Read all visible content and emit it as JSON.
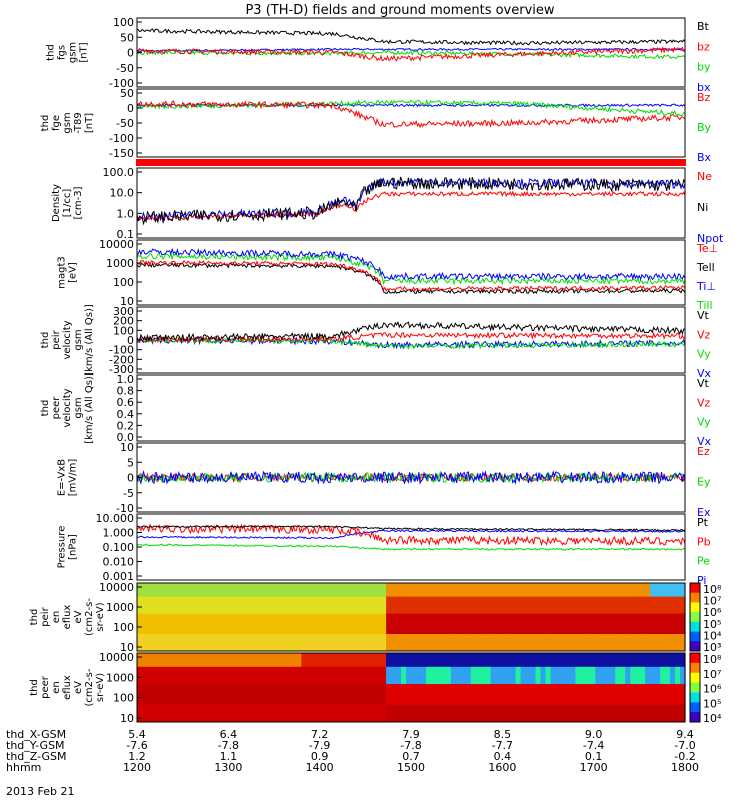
{
  "title": "P3 (TH-D) fields and ground moments overview",
  "date": "2013 Feb 21",
  "colors": {
    "black": "#000000",
    "red": "#ff0000",
    "green": "#00dd00",
    "blue": "#0000ff"
  },
  "chart_data": [
    {
      "type": "line",
      "panel": "fgs",
      "ylabel_lines": [
        "thd",
        "fgs",
        "gsm",
        "[nT]"
      ],
      "yticks": [
        "100",
        "50",
        "0",
        "-50",
        "-100"
      ],
      "ylim": [
        -115,
        105
      ],
      "legend": [
        {
          "label": "Bt",
          "color": "#000000"
        },
        {
          "label": "bz",
          "color": "#ff0000"
        },
        {
          "label": "by",
          "color": "#00dd00"
        },
        {
          "label": "bx",
          "color": "#0000ff"
        }
      ],
      "series": [
        {
          "name": "Bt",
          "levels": [
            [
              0,
              65
            ],
            [
              0.36,
              55
            ],
            [
              0.45,
              30
            ],
            [
              0.7,
              25
            ],
            [
              1,
              30
            ]
          ],
          "noise": 6
        },
        {
          "name": "bz",
          "levels": [
            [
              0,
              0
            ],
            [
              0.36,
              -5
            ],
            [
              0.45,
              -25
            ],
            [
              0.7,
              -10
            ],
            [
              1,
              5
            ]
          ],
          "noise": 8
        },
        {
          "name": "by",
          "levels": [
            [
              0,
              -5
            ],
            [
              0.36,
              -8
            ],
            [
              0.45,
              -5
            ],
            [
              0.7,
              -10
            ],
            [
              1,
              -20
            ]
          ],
          "noise": 6
        },
        {
          "name": "bx",
          "levels": [
            [
              0,
              0
            ],
            [
              0.36,
              5
            ],
            [
              0.45,
              5
            ],
            [
              1,
              5
            ]
          ],
          "noise": 3
        }
      ]
    },
    {
      "type": "line",
      "panel": "fge",
      "ylabel_lines": [
        "thd",
        "fge",
        "gsm",
        "-T89"
      ],
      "ylabel_unit": "[nT]",
      "yticks": [
        "50",
        "0",
        "-50",
        "-100",
        "-150"
      ],
      "ylim": [
        -175,
        55
      ],
      "legend": [
        {
          "label": "Bz",
          "color": "#ff0000"
        },
        {
          "label": "By",
          "color": "#00dd00"
        },
        {
          "label": "Bx",
          "color": "#0000ff"
        }
      ],
      "series": [
        {
          "name": "Bz",
          "levels": [
            [
              0,
              5
            ],
            [
              0.36,
              0
            ],
            [
              0.45,
              -65
            ],
            [
              0.7,
              -60
            ],
            [
              1,
              -40
            ]
          ],
          "noise": 10
        },
        {
          "name": "By",
          "levels": [
            [
              0,
              -5
            ],
            [
              0.36,
              5
            ],
            [
              0.45,
              10
            ],
            [
              0.7,
              5
            ],
            [
              1,
              -30
            ]
          ],
          "noise": 8
        },
        {
          "name": "Bx",
          "levels": [
            [
              0,
              0
            ],
            [
              0.36,
              0
            ],
            [
              0.45,
              0
            ],
            [
              1,
              0
            ]
          ],
          "noise": 4
        }
      ]
    },
    {
      "type": "line",
      "panel": "density",
      "log": true,
      "ylabel_lines": [
        "Density",
        "[1/cc]",
        "[cm-3]"
      ],
      "yticks": [
        "100.0",
        "10.0",
        "1.0",
        "0.1"
      ],
      "ylim": [
        0.1,
        200
      ],
      "legend": [
        {
          "label": "Ne",
          "color": "#ff0000"
        },
        {
          "label": "Ni",
          "color": "#000000"
        },
        {
          "label": "Npot",
          "color": "#0000ff"
        }
      ],
      "series": [
        {
          "name": "Ni",
          "levels": [
            [
              0,
              0.9
            ],
            [
              0.33,
              1.5
            ],
            [
              0.38,
              5
            ],
            [
              0.4,
              2
            ],
            [
              0.45,
              40
            ],
            [
              1,
              30
            ]
          ],
          "noise": 0.3
        },
        {
          "name": "Ne",
          "levels": [
            [
              0,
              0.8
            ],
            [
              0.33,
              1.3
            ],
            [
              0.38,
              4
            ],
            [
              0.4,
              2
            ],
            [
              0.45,
              12
            ],
            [
              1,
              12
            ]
          ],
          "noise": 0.1
        },
        {
          "name": "Npot",
          "levels": [
            [
              0,
              1.0
            ],
            [
              0.33,
              1.6
            ],
            [
              0.38,
              6
            ],
            [
              0.4,
              2.5
            ],
            [
              0.45,
              45
            ],
            [
              1,
              35
            ]
          ],
          "noise": 0.2
        }
      ]
    },
    {
      "type": "line",
      "panel": "temperature",
      "log": true,
      "ylabel_lines": [
        "magt3",
        "[eV]"
      ],
      "yticks": [
        "10000",
        "1000",
        "100",
        "10"
      ],
      "ylim": [
        10,
        15000
      ],
      "legend": [
        {
          "label": "Te⊥",
          "color": "#ff0000"
        },
        {
          "label": "Tell",
          "color": "#000000"
        },
        {
          "label": "Ti⊥",
          "color": "#0000ff"
        },
        {
          "label": "Till",
          "color": "#00dd00"
        }
      ],
      "series": [
        {
          "name": "Ti⊥",
          "levels": [
            [
              0,
              4000
            ],
            [
              0.36,
              3000
            ],
            [
              0.45,
              250
            ],
            [
              1,
              250
            ]
          ],
          "noise": 0.15
        },
        {
          "name": "Till",
          "levels": [
            [
              0,
              2500
            ],
            [
              0.36,
              2000
            ],
            [
              0.45,
              150
            ],
            [
              1,
              150
            ]
          ],
          "noise": 0.15
        },
        {
          "name": "Te⊥",
          "levels": [
            [
              0,
              1200
            ],
            [
              0.36,
              1000
            ],
            [
              0.45,
              60
            ],
            [
              1,
              70
            ]
          ],
          "noise": 0.1
        },
        {
          "name": "Tell",
          "levels": [
            [
              0,
              900
            ],
            [
              0.36,
              800
            ],
            [
              0.45,
              45
            ],
            [
              1,
              50
            ]
          ],
          "noise": 0.1
        }
      ]
    },
    {
      "type": "line",
      "panel": "peir_velocity",
      "ylabel_lines": [
        "thd",
        "peir",
        "velocity",
        "gsm",
        "[km/s (All Qs)]"
      ],
      "yticks": [
        "300",
        "200",
        "100",
        "0",
        "-100",
        "-200",
        "-300"
      ],
      "ylim": [
        -320,
        320
      ],
      "legend": [
        {
          "label": "Vt",
          "color": "#000000"
        },
        {
          "label": "Vz",
          "color": "#ff0000"
        },
        {
          "label": "Vy",
          "color": "#00dd00"
        },
        {
          "label": "Vx",
          "color": "#0000ff"
        }
      ],
      "series": [
        {
          "name": "Vt",
          "levels": [
            [
              0,
              20
            ],
            [
              0.36,
              40
            ],
            [
              0.45,
              150
            ],
            [
              0.7,
              120
            ],
            [
              1,
              90
            ]
          ],
          "noise": 30
        },
        {
          "name": "Vz",
          "levels": [
            [
              0,
              5
            ],
            [
              0.36,
              10
            ],
            [
              0.45,
              50
            ],
            [
              1,
              40
            ]
          ],
          "noise": 25
        },
        {
          "name": "Vy",
          "levels": [
            [
              0,
              0
            ],
            [
              0.36,
              -10
            ],
            [
              0.45,
              -60
            ],
            [
              1,
              -40
            ]
          ],
          "noise": 25
        },
        {
          "name": "Vx",
          "levels": [
            [
              0,
              -5
            ],
            [
              0.36,
              -10
            ],
            [
              0.45,
              -50
            ],
            [
              1,
              -30
            ]
          ],
          "noise": 30
        }
      ]
    },
    {
      "type": "line",
      "panel": "peer_velocity",
      "ylabel_lines": [
        "thd",
        "peer",
        "velocity",
        "gsm",
        "[km/s (All Qs)]"
      ],
      "yticks": [
        "1.0",
        "0.8",
        "0.6",
        "0.4",
        "0.2",
        "0.0"
      ],
      "ylim": [
        0,
        1
      ],
      "legend": [
        {
          "label": "Vt",
          "color": "#000000"
        },
        {
          "label": "Vz",
          "color": "#ff0000"
        },
        {
          "label": "Vy",
          "color": "#00dd00"
        },
        {
          "label": "Vx",
          "color": "#0000ff"
        }
      ],
      "series": []
    },
    {
      "type": "line",
      "panel": "efield",
      "ylabel_lines": [
        "E=-VxB",
        "[mV/m]"
      ],
      "yticks": [
        "10",
        "5",
        "0",
        "-5",
        "-10"
      ],
      "ylim": [
        -11,
        11
      ],
      "legend": [
        {
          "label": "Ez",
          "color": "#ff0000"
        },
        {
          "label": "Ey",
          "color": "#00dd00"
        },
        {
          "label": "Ex",
          "color": "#0000ff"
        }
      ],
      "series": [
        {
          "name": "Ex",
          "levels": [
            [
              0,
              0
            ],
            [
              1,
              0
            ]
          ],
          "noise": 1.8
        },
        {
          "name": "Ey",
          "levels": [
            [
              0,
              0
            ],
            [
              1,
              0
            ]
          ],
          "noise": 1.5
        },
        {
          "name": "Ez",
          "levels": [
            [
              0,
              0
            ],
            [
              1,
              0
            ]
          ],
          "noise": 1.2
        }
      ]
    },
    {
      "type": "line",
      "panel": "pressure",
      "log": true,
      "ylabel_lines": [
        "Pressure",
        "[nPa]"
      ],
      "yticks": [
        "10.000",
        "1.000",
        "0.100",
        "0.010",
        "0.001"
      ],
      "ylim": [
        0.001,
        12
      ],
      "legend": [
        {
          "label": "Pt",
          "color": "#000000"
        },
        {
          "label": "Pb",
          "color": "#ff0000"
        },
        {
          "label": "Pe",
          "color": "#00dd00"
        },
        {
          "label": "Pi",
          "color": "#0000ff"
        }
      ],
      "series": [
        {
          "name": "Pt",
          "levels": [
            [
              0,
              2
            ],
            [
              0.36,
              2
            ],
            [
              0.45,
              1.5
            ],
            [
              1,
              1.2
            ]
          ],
          "noise": 0.05
        },
        {
          "name": "Pb",
          "levels": [
            [
              0,
              1.5
            ],
            [
              0.36,
              1.3
            ],
            [
              0.45,
              0.3
            ],
            [
              1,
              0.25
            ]
          ],
          "noise": 0.25
        },
        {
          "name": "Pe",
          "levels": [
            [
              0,
              0.15
            ],
            [
              0.36,
              0.12
            ],
            [
              0.45,
              0.08
            ],
            [
              1,
              0.08
            ]
          ],
          "noise": 0.05
        },
        {
          "name": "Pi",
          "levels": [
            [
              0,
              0.45
            ],
            [
              0.36,
              0.4
            ],
            [
              0.45,
              1.1
            ],
            [
              1,
              1.0
            ]
          ],
          "noise": 0.05
        }
      ]
    },
    {
      "type": "heatmap",
      "panel": "peir_eflux",
      "ylabel_lines": [
        "thd",
        "peir",
        "en",
        "eflux",
        "eV",
        "(cm2-s-",
        "sr-eV)"
      ],
      "yticks": [
        "10000",
        "1000",
        "100",
        "10"
      ],
      "colorbar_ticks": [
        "10⁸",
        "10⁷",
        "10⁶",
        "10⁵",
        "10⁴",
        "10³"
      ]
    },
    {
      "type": "heatmap",
      "panel": "peer_eflux",
      "ylabel_lines": [
        "thd",
        "peer",
        "en",
        "eflux",
        "eV",
        "(cm2-s-",
        "sr-eV)"
      ],
      "yticks": [
        "10000",
        "1000",
        "100",
        "10"
      ],
      "colorbar_ticks": [
        "10⁸",
        "10⁷",
        "10⁶",
        "10⁵",
        "10⁴"
      ]
    }
  ],
  "xaxis": {
    "rows": [
      {
        "label": "thd_X-GSM",
        "values": [
          "5.4",
          "6.4",
          "7.2",
          "7.9",
          "8.5",
          "9.0",
          "9.4"
        ]
      },
      {
        "label": "thd_Y-GSM",
        "values": [
          "-7.6",
          "-7.8",
          "-7.9",
          "-7.8",
          "-7.7",
          "-7.4",
          "-7.0"
        ]
      },
      {
        "label": "thd_Z-GSM",
        "values": [
          "1.2",
          "1.1",
          "0.9",
          "0.7",
          "0.4",
          "0.1",
          "-0.2"
        ]
      },
      {
        "label": "hhmm",
        "values": [
          "1200",
          "1300",
          "1400",
          "1500",
          "1600",
          "1700",
          "1800"
        ]
      }
    ]
  }
}
